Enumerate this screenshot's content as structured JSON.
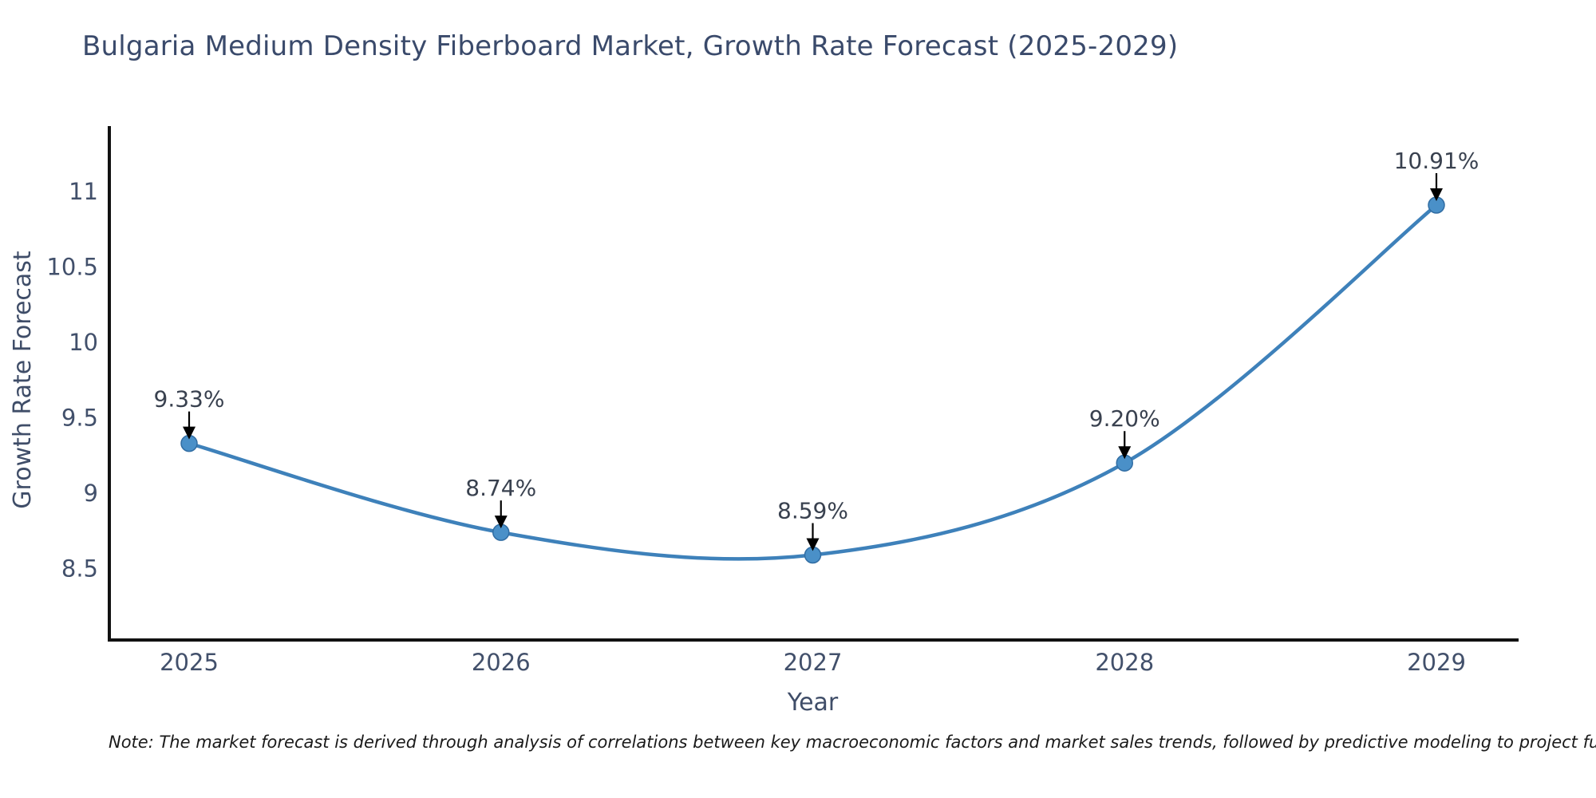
{
  "header": {
    "title": "Bulgaria Medium Density Fiberboard Market, Growth Rate Forecast (2025-2029)"
  },
  "footnote": {
    "text": "Note: The market forecast is derived through analysis of correlations between key macroeconomic factors and market sales trends, followed by predictive modeling to project future sal"
  },
  "chart_data": {
    "type": "line",
    "title": "Bulgaria Medium Density Fiberboard Market, Growth Rate Forecast (2025-2029)",
    "xlabel": "Year",
    "ylabel": "Growth Rate Forecast",
    "categories": [
      "2025",
      "2026",
      "2027",
      "2028",
      "2029"
    ],
    "values": [
      9.33,
      8.74,
      8.59,
      9.2,
      10.91
    ],
    "point_labels": [
      "9.33%",
      "8.74%",
      "8.59%",
      "9.20%",
      "10.91%"
    ],
    "ytick_labels": [
      "8.5",
      "9",
      "9.5",
      "10",
      "10.5",
      "11"
    ],
    "ytick_values": [
      8.5,
      9,
      9.5,
      10,
      10.5,
      11
    ],
    "ylim": [
      8.03,
      11.42
    ],
    "grid": false,
    "legend": "none",
    "colors": {
      "line": "#3e81ba",
      "marker_fill": "#4a90c8",
      "marker_edge": "#316da3",
      "axis": "#111111",
      "tick_label": "#42506b",
      "axis_title": "#3f4d68",
      "annotation_text": "#39414f",
      "annotation_arrow": "#000000"
    }
  }
}
